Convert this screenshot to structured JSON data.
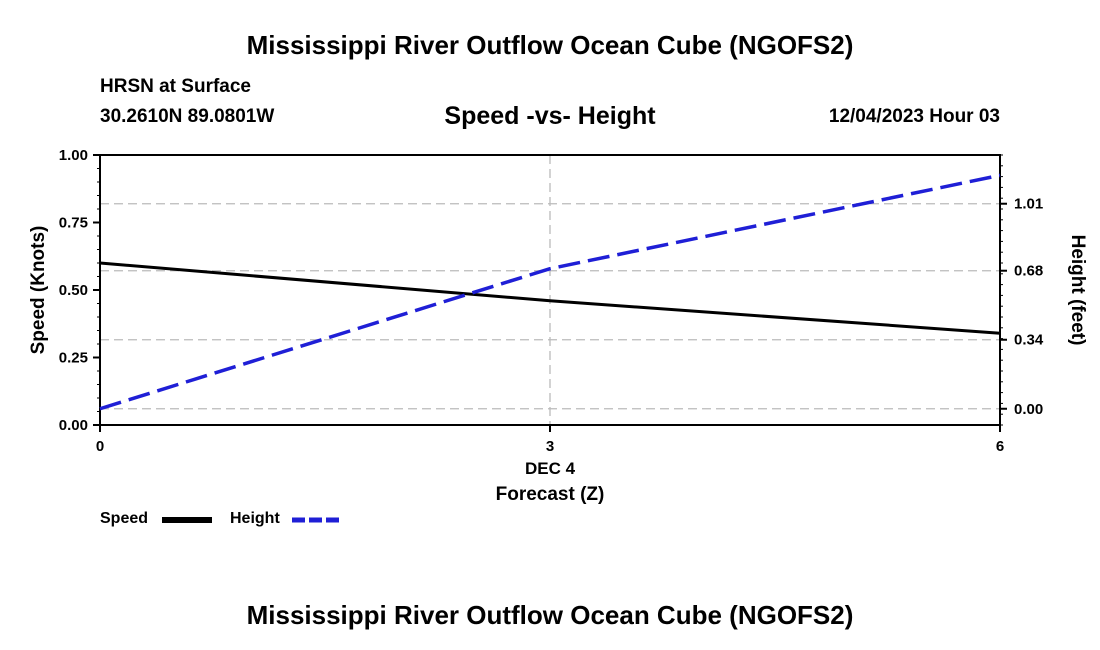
{
  "header": {
    "title": "Mississippi River Outflow Ocean Cube (NGOFS2)",
    "station": "HRSN at Surface",
    "coords": "30.2610N  89.0801W",
    "chart_title": "Speed -vs- Height",
    "datetime": "12/04/2023 Hour 03"
  },
  "footer": {
    "title": "Mississippi River Outflow Ocean Cube (NGOFS2)"
  },
  "legend": {
    "speed_label": "Speed",
    "height_label": "Height"
  },
  "colors": {
    "speed": "#000000",
    "height": "#1f1fd6",
    "grid": "#bbbbbb"
  },
  "chart_data": {
    "type": "line",
    "title": "Speed -vs- Height",
    "x": [
      0,
      3,
      6
    ],
    "xlim": [
      0,
      6
    ],
    "xticks": [
      0,
      3,
      6
    ],
    "xtick_labels": [
      "0",
      "3",
      "6"
    ],
    "xlabel_date": "DEC 4",
    "xlabel": "Forecast (Z)",
    "ylabel_left": "Speed (Knots)",
    "ylim_left": [
      0,
      1
    ],
    "yticks_left": [
      0,
      0.25,
      0.5,
      0.75,
      1.0
    ],
    "ytick_labels_left": [
      "0.00",
      "0.25",
      "0.50",
      "0.75",
      "1.00"
    ],
    "ylabel_right": "Height (feet)",
    "ylim_right": [
      -0.08,
      1.25
    ],
    "yticks_right": [
      0,
      0.34,
      0.68,
      1.01
    ],
    "ytick_labels_right": [
      "0.00",
      "0.34",
      "0.68",
      "1.01"
    ],
    "series": [
      {
        "name": "Speed",
        "axis": "left",
        "style": "solid",
        "x": [
          0,
          3,
          6
        ],
        "values": [
          0.6,
          0.46,
          0.34
        ]
      },
      {
        "name": "Height",
        "axis": "right",
        "style": "dashed",
        "x": [
          0,
          3,
          6
        ],
        "values": [
          0.0,
          0.69,
          1.15
        ]
      }
    ]
  }
}
